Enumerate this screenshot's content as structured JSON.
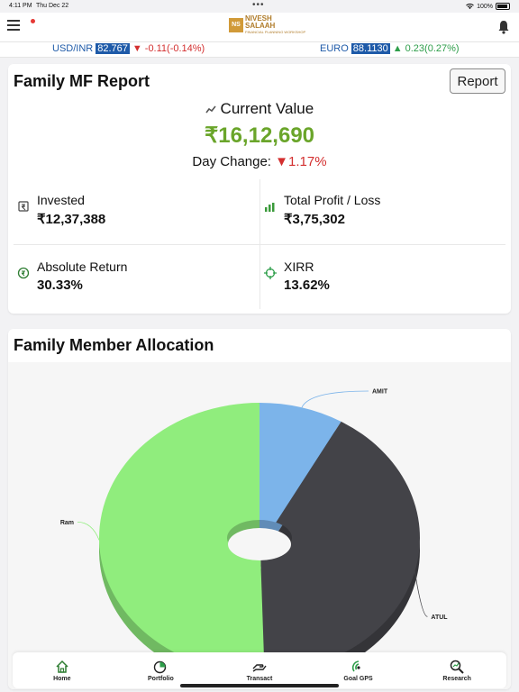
{
  "status": {
    "time": "4:11 PM",
    "date": "Thu Dec 22",
    "battery": "100%"
  },
  "logo": {
    "mark": "NS",
    "line1": "NIVESH",
    "line2": "SALAAH",
    "sub": "FINANCIAL PLANNING WORKSHOP"
  },
  "ticker": {
    "usd": {
      "label": "USD/INR",
      "value": "82.767",
      "change": "-0.11(-0.14%)"
    },
    "euro": {
      "label": "EURO",
      "value": "88.1130",
      "change": "0.23(0.27%)"
    }
  },
  "report": {
    "title": "Family MF Report",
    "button": "Report",
    "current_value_label": "Current Value",
    "current_value": "₹16,12,690",
    "day_change_label": "Day Change:",
    "day_change_value": "1.17%",
    "invested_label": "Invested",
    "invested_value": "₹12,37,388",
    "pl_label": "Total Profit / Loss",
    "pl_value": "₹3,75,302",
    "abs_label": "Absolute Return",
    "abs_value": "30.33%",
    "xirr_label": "XIRR",
    "xirr_value": "13.62%"
  },
  "allocation": {
    "title": "Family Member Allocation"
  },
  "chart_data": {
    "type": "pie",
    "title": "Family Member Allocation",
    "categories": [
      "AMIT",
      "ATUL",
      "Ram"
    ],
    "values": [
      8.5,
      41,
      50.5
    ],
    "colors": [
      "#7cb4ea",
      "#434348",
      "#90ed7d"
    ]
  },
  "tabs": [
    {
      "label": "Home",
      "icon": "home-icon"
    },
    {
      "label": "Portfolio",
      "icon": "portfolio-icon"
    },
    {
      "label": "Transact",
      "icon": "transact-icon"
    },
    {
      "label": "Goal GPS",
      "icon": "goal-gps-icon"
    },
    {
      "label": "Research",
      "icon": "research-icon"
    }
  ]
}
